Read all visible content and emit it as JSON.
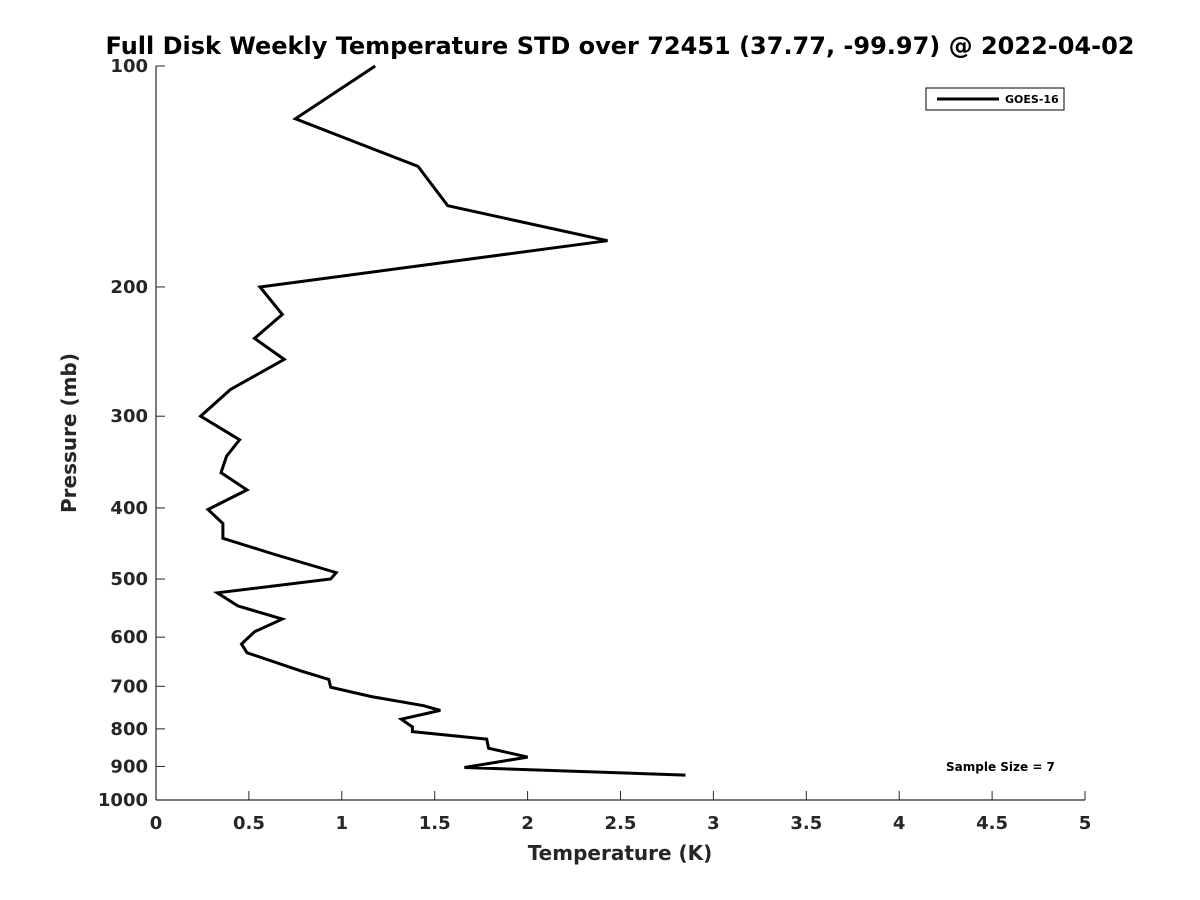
{
  "chart_data": {
    "type": "line",
    "title": "Full Disk Weekly Temperature STD over 72451 (37.77, -99.97) @ 2022-04-02",
    "xlabel": "Temperature (K)",
    "ylabel": "Pressure (mb)",
    "xlim": [
      0,
      5
    ],
    "ylim": [
      100,
      1000
    ],
    "y_scale": "log",
    "y_reversed": true,
    "grid": false,
    "x_ticks": [
      0,
      0.5,
      1,
      1.5,
      2,
      2.5,
      3,
      3.5,
      4,
      4.5,
      5
    ],
    "x_tick_labels": [
      "0",
      "0.5",
      "1",
      "1.5",
      "2",
      "2.5",
      "3",
      "3.5",
      "4",
      "4.5",
      "5"
    ],
    "y_ticks": [
      100,
      200,
      300,
      400,
      500,
      600,
      700,
      800,
      900,
      1000
    ],
    "y_tick_labels": [
      "100",
      "200",
      "300",
      "400",
      "500",
      "600",
      "700",
      "800",
      "900",
      "1000"
    ],
    "legend": {
      "position": "top-right",
      "entries": [
        "GOES-16"
      ]
    },
    "annotation": "Sample Size = 7",
    "series": [
      {
        "name": "GOES-16",
        "color": "#000000",
        "points": [
          [
            1.18,
            100
          ],
          [
            0.75,
            118
          ],
          [
            1.41,
            137
          ],
          [
            1.57,
            155
          ],
          [
            2.43,
            173
          ],
          [
            0.56,
            200
          ],
          [
            0.68,
            218
          ],
          [
            0.53,
            235
          ],
          [
            0.69,
            251
          ],
          [
            0.4,
            276
          ],
          [
            0.24,
            300
          ],
          [
            0.45,
            323
          ],
          [
            0.38,
            340
          ],
          [
            0.35,
            358
          ],
          [
            0.49,
            378
          ],
          [
            0.28,
            402
          ],
          [
            0.36,
            420
          ],
          [
            0.36,
            440
          ],
          [
            0.64,
            463
          ],
          [
            0.97,
            490
          ],
          [
            0.94,
            500
          ],
          [
            0.33,
            522
          ],
          [
            0.44,
            544
          ],
          [
            0.68,
            567
          ],
          [
            0.53,
            590
          ],
          [
            0.46,
            613
          ],
          [
            0.49,
            630
          ],
          [
            0.78,
            667
          ],
          [
            0.93,
            685
          ],
          [
            0.94,
            702
          ],
          [
            1.16,
            723
          ],
          [
            1.44,
            744
          ],
          [
            1.53,
            755
          ],
          [
            1.32,
            776
          ],
          [
            1.38,
            795
          ],
          [
            1.38,
            807
          ],
          [
            1.78,
            826
          ],
          [
            1.79,
            850
          ],
          [
            2.0,
            874
          ],
          [
            1.66,
            903
          ],
          [
            2.85,
            925
          ]
        ]
      }
    ]
  }
}
